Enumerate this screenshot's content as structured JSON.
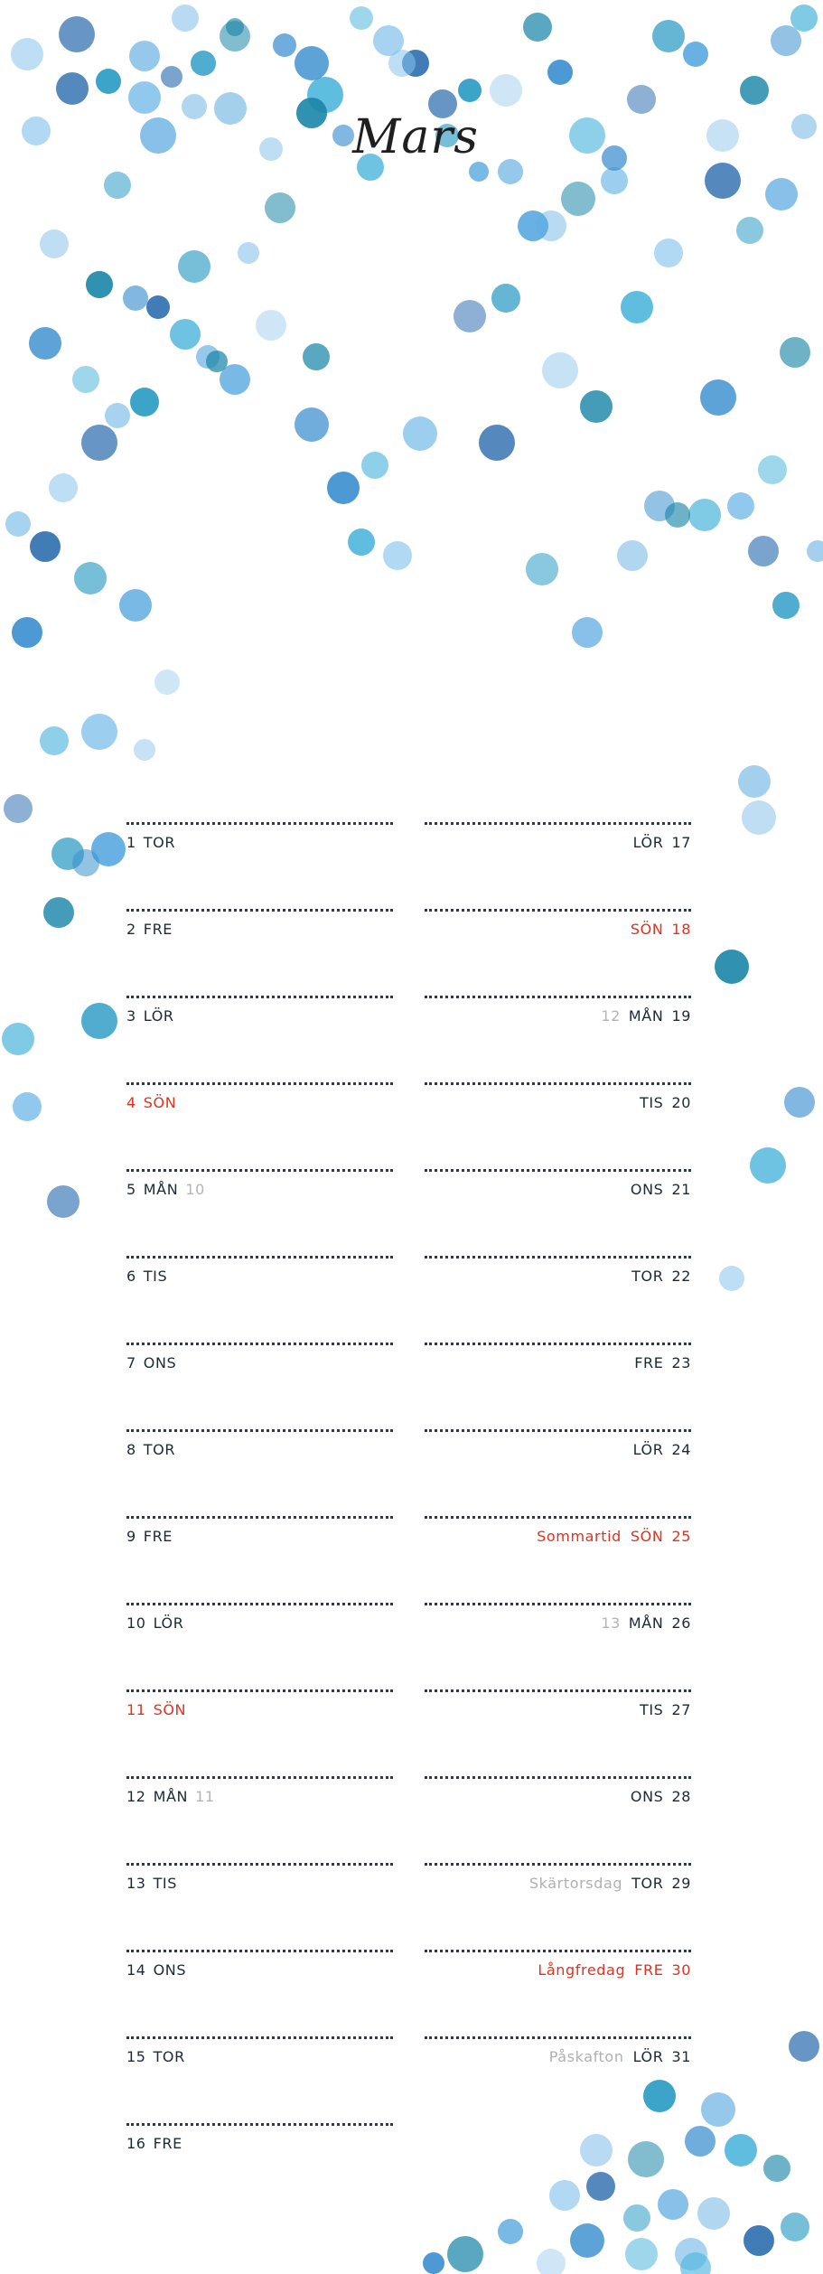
{
  "month": "Mars",
  "left_column": [
    {
      "day": "1",
      "weekday": "TOR",
      "week": "",
      "note": "",
      "holiday": false
    },
    {
      "day": "2",
      "weekday": "FRE",
      "week": "",
      "note": "",
      "holiday": false
    },
    {
      "day": "3",
      "weekday": "LÖR",
      "week": "",
      "note": "",
      "holiday": false
    },
    {
      "day": "4",
      "weekday": "SÖN",
      "week": "",
      "note": "",
      "holiday": true
    },
    {
      "day": "5",
      "weekday": "MÅN",
      "week": "10",
      "note": "",
      "holiday": false
    },
    {
      "day": "6",
      "weekday": "TIS",
      "week": "",
      "note": "",
      "holiday": false
    },
    {
      "day": "7",
      "weekday": "ONS",
      "week": "",
      "note": "",
      "holiday": false
    },
    {
      "day": "8",
      "weekday": "TOR",
      "week": "",
      "note": "",
      "holiday": false
    },
    {
      "day": "9",
      "weekday": "FRE",
      "week": "",
      "note": "",
      "holiday": false
    },
    {
      "day": "10",
      "weekday": "LÖR",
      "week": "",
      "note": "",
      "holiday": false
    },
    {
      "day": "11",
      "weekday": "SÖN",
      "week": "",
      "note": "",
      "holiday": true
    },
    {
      "day": "12",
      "weekday": "MÅN",
      "week": "11",
      "note": "",
      "holiday": false
    },
    {
      "day": "13",
      "weekday": "TIS",
      "week": "",
      "note": "",
      "holiday": false
    },
    {
      "day": "14",
      "weekday": "ONS",
      "week": "",
      "note": "",
      "holiday": false
    },
    {
      "day": "15",
      "weekday": "TOR",
      "week": "",
      "note": "",
      "holiday": false
    },
    {
      "day": "16",
      "weekday": "FRE",
      "week": "",
      "note": "",
      "holiday": false
    }
  ],
  "right_column": [
    {
      "day": "17",
      "weekday": "LÖR",
      "week": "",
      "note": "",
      "holiday": false
    },
    {
      "day": "18",
      "weekday": "SÖN",
      "week": "",
      "note": "",
      "holiday": true
    },
    {
      "day": "19",
      "weekday": "MÅN",
      "week": "12",
      "note": "",
      "holiday": false
    },
    {
      "day": "20",
      "weekday": "TIS",
      "week": "",
      "note": "",
      "holiday": false
    },
    {
      "day": "21",
      "weekday": "ONS",
      "week": "",
      "note": "",
      "holiday": false
    },
    {
      "day": "22",
      "weekday": "TOR",
      "week": "",
      "note": "",
      "holiday": false
    },
    {
      "day": "23",
      "weekday": "FRE",
      "week": "",
      "note": "",
      "holiday": false
    },
    {
      "day": "24",
      "weekday": "LÖR",
      "week": "",
      "note": "",
      "holiday": false
    },
    {
      "day": "25",
      "weekday": "SÖN",
      "week": "",
      "note": "Sommartid",
      "holiday": true
    },
    {
      "day": "26",
      "weekday": "MÅN",
      "week": "13",
      "note": "",
      "holiday": false
    },
    {
      "day": "27",
      "weekday": "TIS",
      "week": "",
      "note": "",
      "holiday": false
    },
    {
      "day": "28",
      "weekday": "ONS",
      "week": "",
      "note": "",
      "holiday": false
    },
    {
      "day": "29",
      "weekday": "TOR",
      "week": "",
      "note": "Skärtorsdag",
      "holiday": false
    },
    {
      "day": "30",
      "weekday": "FRE",
      "week": "",
      "note": "Långfredag",
      "holiday": true
    },
    {
      "day": "31",
      "weekday": "LÖR",
      "week": "",
      "note": "Påskafton",
      "holiday": false
    }
  ],
  "colors": {
    "text": "#1c2a38",
    "holiday": "#e0321f",
    "muted": "#b0b0b0",
    "dot_palette": [
      "#2f6fb0",
      "#3b8fd0",
      "#5aa9e0",
      "#86c3ec",
      "#1b86a8",
      "#2a9bc4",
      "#4fb6dc",
      "#a8d2ef"
    ]
  },
  "decoration": "watercolor-dots"
}
